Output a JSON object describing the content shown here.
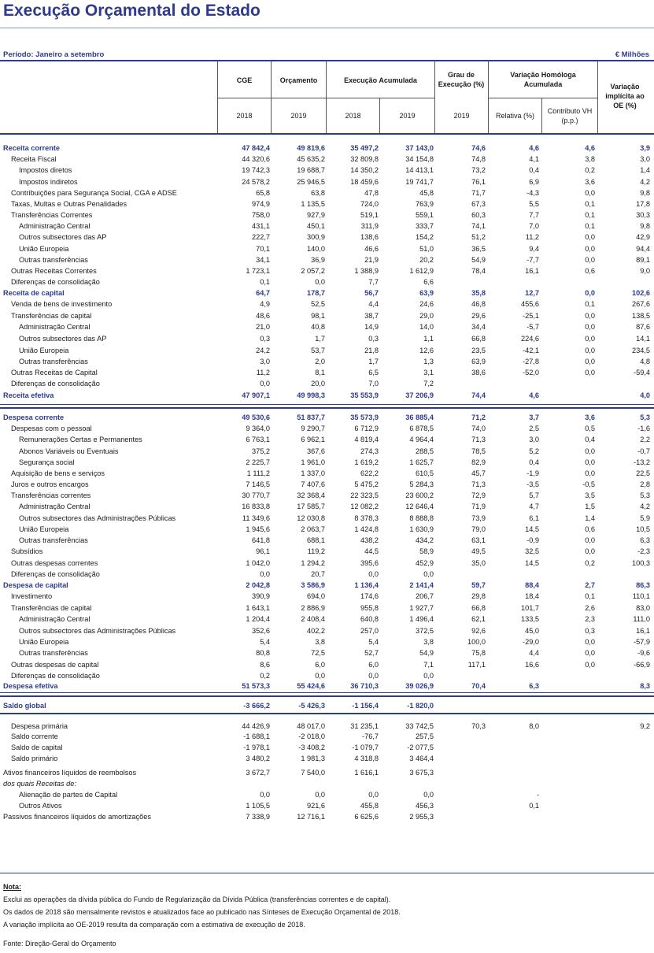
{
  "title": "Execução Orçamental do Estado",
  "period": "Período: Janeiro a setembro",
  "unit": "€ Milhões",
  "headers": {
    "cge": "CGE",
    "orcamento": "Orçamento",
    "execucao": "Execução Acumulada",
    "grau": "Grau de Execução (%)",
    "variacao": "Variação Homóloga Acumulada",
    "implicita": "Variação implícita ao OE (%)",
    "y2018a": "2018",
    "y2019a": "2019",
    "y2018b": "2018",
    "y2019b": "2019",
    "y2019c": "2019",
    "relativa": "Relativa (%)",
    "contributo": "Contributo VH (p.p.)"
  },
  "rows": [
    {
      "label": "Receita corrente",
      "indent": 0,
      "bold": true,
      "v": [
        "47 842,4",
        "49 819,6",
        "35 497,2",
        "37 143,0",
        "74,6",
        "4,6",
        "4,6",
        "3,9"
      ]
    },
    {
      "label": "Receita Fiscal",
      "indent": 1,
      "v": [
        "44 320,6",
        "45 635,2",
        "32 809,8",
        "34 154,8",
        "74,8",
        "4,1",
        "3,8",
        "3,0"
      ]
    },
    {
      "label": "Impostos diretos",
      "indent": 2,
      "v": [
        "19 742,3",
        "19 688,7",
        "14 350,2",
        "14 413,1",
        "73,2",
        "0,4",
        "0,2",
        "1,4"
      ]
    },
    {
      "label": "Impostos indiretos",
      "indent": 2,
      "v": [
        "24 578,2",
        "25 946,5",
        "18 459,6",
        "19 741,7",
        "76,1",
        "6,9",
        "3,6",
        "4,2"
      ]
    },
    {
      "label": "Contribuições para Segurança Social, CGA e ADSE",
      "indent": 1,
      "v": [
        "65,8",
        "63,8",
        "47,8",
        "45,8",
        "71,7",
        "-4,3",
        "0,0",
        "9,8"
      ]
    },
    {
      "label": "Taxas, Multas e Outras Penalidades",
      "indent": 1,
      "v": [
        "974,9",
        "1 135,5",
        "724,0",
        "763,9",
        "67,3",
        "5,5",
        "0,1",
        "17,8"
      ]
    },
    {
      "label": "Transferências Correntes",
      "indent": 1,
      "v": [
        "758,0",
        "927,9",
        "519,1",
        "559,1",
        "60,3",
        "7,7",
        "0,1",
        "30,3"
      ]
    },
    {
      "label": "Administração Central",
      "indent": 2,
      "v": [
        "431,1",
        "450,1",
        "311,9",
        "333,7",
        "74,1",
        "7,0",
        "0,1",
        "9,8"
      ]
    },
    {
      "label": "Outros subsectores das AP",
      "indent": 2,
      "v": [
        "222,7",
        "300,9",
        "138,6",
        "154,2",
        "51,2",
        "11,2",
        "0,0",
        "42,9"
      ]
    },
    {
      "label": "União Europeia",
      "indent": 2,
      "v": [
        "70,1",
        "140,0",
        "46,6",
        "51,0",
        "36,5",
        "9,4",
        "0,0",
        "94,4"
      ]
    },
    {
      "label": "Outras transferências",
      "indent": 2,
      "v": [
        "34,1",
        "36,9",
        "21,9",
        "20,2",
        "54,9",
        "-7,7",
        "0,0",
        "89,1"
      ]
    },
    {
      "label": "Outras Receitas Correntes",
      "indent": 1,
      "v": [
        "1 723,1",
        "2 057,2",
        "1 388,9",
        "1 612,9",
        "78,4",
        "16,1",
        "0,6",
        "9,0"
      ]
    },
    {
      "label": "Diferenças de consolidação",
      "indent": 1,
      "v": [
        "0,1",
        "0,0",
        "7,7",
        "6,6",
        "",
        "",
        "",
        ""
      ]
    },
    {
      "label": "Receita de capital",
      "indent": 0,
      "bold": true,
      "v": [
        "64,7",
        "178,7",
        "56,7",
        "63,9",
        "35,8",
        "12,7",
        "0,0",
        "102,6"
      ]
    },
    {
      "label": "Venda de bens de investimento",
      "indent": 1,
      "v": [
        "4,9",
        "52,5",
        "4,4",
        "24,6",
        "46,8",
        "455,6",
        "0,1",
        "267,6"
      ]
    },
    {
      "label": "Transferências de capital",
      "indent": 1,
      "v": [
        "48,6",
        "98,1",
        "38,7",
        "29,0",
        "29,6",
        "-25,1",
        "0,0",
        "138,5"
      ]
    },
    {
      "label": "Administração Central",
      "indent": 2,
      "v": [
        "21,0",
        "40,8",
        "14,9",
        "14,0",
        "34,4",
        "-5,7",
        "0,0",
        "87,6"
      ]
    },
    {
      "label": "Outros subsectores das AP",
      "indent": 2,
      "v": [
        "0,3",
        "1,7",
        "0,3",
        "1,1",
        "66,8",
        "224,6",
        "0,0",
        "14,1"
      ]
    },
    {
      "label": "União Europeia",
      "indent": 2,
      "v": [
        "24,2",
        "53,7",
        "21,8",
        "12,6",
        "23,5",
        "-42,1",
        "0,0",
        "234,5"
      ]
    },
    {
      "label": "Outras transferências",
      "indent": 2,
      "v": [
        "3,0",
        "2,0",
        "1,7",
        "1,3",
        "63,9",
        "-27,8",
        "0,0",
        "4,8"
      ]
    },
    {
      "label": "Outras Receitas de Capital",
      "indent": 1,
      "v": [
        "11,2",
        "8,1",
        "6,5",
        "3,1",
        "38,6",
        "-52,0",
        "0,0",
        "-59,4"
      ]
    },
    {
      "label": "Diferenças de consolidação",
      "indent": 1,
      "v": [
        "0,0",
        "20,0",
        "7,0",
        "7,2",
        "",
        "",
        "",
        ""
      ]
    },
    {
      "label": "Receita efetiva",
      "indent": 0,
      "bold": true,
      "v": [
        "47 907,1",
        "49 998,3",
        "35 553,9",
        "37 206,9",
        "74,4",
        "4,6",
        "",
        "4,0"
      ]
    },
    {
      "label": "Despesa corrente",
      "indent": 0,
      "bold": true,
      "v": [
        "49 530,6",
        "51 837,7",
        "35 573,9",
        "36 885,4",
        "71,2",
        "3,7",
        "3,6",
        "5,3"
      ]
    },
    {
      "label": "Despesas com o pessoal",
      "indent": 1,
      "v": [
        "9 364,0",
        "9 290,7",
        "6 712,9",
        "6 878,5",
        "74,0",
        "2,5",
        "0,5",
        "-1,6"
      ]
    },
    {
      "label": "Remunerações Certas e Permanentes",
      "indent": 2,
      "v": [
        "6 763,1",
        "6 962,1",
        "4 819,4",
        "4 964,4",
        "71,3",
        "3,0",
        "0,4",
        "2,2"
      ]
    },
    {
      "label": "Abonos Variáveis ou Eventuais",
      "indent": 2,
      "v": [
        "375,2",
        "367,6",
        "274,3",
        "288,5",
        "78,5",
        "5,2",
        "0,0",
        "-0,7"
      ]
    },
    {
      "label": "Segurança social",
      "indent": 2,
      "v": [
        "2 225,7",
        "1 961,0",
        "1 619,2",
        "1 625,7",
        "82,9",
        "0,4",
        "0,0",
        "-13,2"
      ]
    },
    {
      "label": "Aquisição de bens e serviços",
      "indent": 1,
      "v": [
        "1 111,2",
        "1 337,0",
        "622,2",
        "610,5",
        "45,7",
        "-1,9",
        "0,0",
        "22,5"
      ]
    },
    {
      "label": "Juros e outros encargos",
      "indent": 1,
      "v": [
        "7 146,5",
        "7 407,6",
        "5 475,2",
        "5 284,3",
        "71,3",
        "-3,5",
        "-0,5",
        "2,8"
      ]
    },
    {
      "label": "Transferências correntes",
      "indent": 1,
      "v": [
        "30 770,7",
        "32 368,4",
        "22 323,5",
        "23 600,2",
        "72,9",
        "5,7",
        "3,5",
        "5,3"
      ]
    },
    {
      "label": "Administração Central",
      "indent": 2,
      "v": [
        "16 833,8",
        "17 585,7",
        "12 082,2",
        "12 646,4",
        "71,9",
        "4,7",
        "1,5",
        "4,2"
      ]
    },
    {
      "label": "Outros subsectores das Administrações Públicas",
      "indent": 2,
      "v": [
        "11 349,6",
        "12 030,8",
        "8 378,3",
        "8 888,8",
        "73,9",
        "6,1",
        "1,4",
        "5,9"
      ]
    },
    {
      "label": "União Europeia",
      "indent": 2,
      "v": [
        "1 945,6",
        "2 063,7",
        "1 424,8",
        "1 630,9",
        "79,0",
        "14,5",
        "0,6",
        "10,5"
      ]
    },
    {
      "label": "Outras transferências",
      "indent": 2,
      "v": [
        "641,8",
        "688,1",
        "438,2",
        "434,2",
        "63,1",
        "-0,9",
        "0,0",
        "6,3"
      ]
    },
    {
      "label": "Subsídios",
      "indent": 1,
      "v": [
        "96,1",
        "119,2",
        "44,5",
        "58,9",
        "49,5",
        "32,5",
        "0,0",
        "-2,3"
      ]
    },
    {
      "label": "Outras despesas correntes",
      "indent": 1,
      "v": [
        "1 042,0",
        "1 294,2",
        "395,6",
        "452,9",
        "35,0",
        "14,5",
        "0,2",
        "100,3"
      ]
    },
    {
      "label": "Diferenças de consolidação",
      "indent": 1,
      "v": [
        "0,0",
        "20,7",
        "0,0",
        "0,0",
        "",
        "",
        "",
        ""
      ]
    },
    {
      "label": "Despesa de capital",
      "indent": 0,
      "bold": true,
      "v": [
        "2 042,8",
        "3 586,9",
        "1 136,4",
        "2 141,4",
        "59,7",
        "88,4",
        "2,7",
        "86,3"
      ]
    },
    {
      "label": "Investimento",
      "indent": 1,
      "v": [
        "390,9",
        "694,0",
        "174,6",
        "206,7",
        "29,8",
        "18,4",
        "0,1",
        "110,1"
      ]
    },
    {
      "label": "Transferências de capital",
      "indent": 1,
      "v": [
        "1 643,1",
        "2 886,9",
        "955,8",
        "1 927,7",
        "66,8",
        "101,7",
        "2,6",
        "83,0"
      ]
    },
    {
      "label": "Administração Central",
      "indent": 2,
      "v": [
        "1 204,4",
        "2 408,4",
        "640,8",
        "1 496,4",
        "62,1",
        "133,5",
        "2,3",
        "111,0"
      ]
    },
    {
      "label": "Outros subsectores das Administrações Públicas",
      "indent": 2,
      "v": [
        "352,6",
        "402,2",
        "257,0",
        "372,5",
        "92,6",
        "45,0",
        "0,3",
        "16,1"
      ]
    },
    {
      "label": "União Europeia",
      "indent": 2,
      "v": [
        "5,4",
        "3,8",
        "5,4",
        "3,8",
        "100,0",
        "-29,0",
        "0,0",
        "-57,9"
      ]
    },
    {
      "label": "Outras transferências",
      "indent": 2,
      "v": [
        "80,8",
        "72,5",
        "52,7",
        "54,9",
        "75,8",
        "4,4",
        "0,0",
        "-9,6"
      ]
    },
    {
      "label": "Outras despesas de capital",
      "indent": 1,
      "v": [
        "8,6",
        "6,0",
        "6,0",
        "7,1",
        "117,1",
        "16,6",
        "0,0",
        "-66,9"
      ]
    },
    {
      "label": "Diferenças de consolidação",
      "indent": 1,
      "v": [
        "0,2",
        "0,0",
        "0,0",
        "0,0",
        "",
        "",
        "",
        ""
      ]
    },
    {
      "label": "Despesa efetiva",
      "indent": 0,
      "bold": true,
      "v": [
        "51 573,3",
        "55 424,6",
        "36 710,3",
        "39 026,9",
        "70,4",
        "6,3",
        "",
        "8,3"
      ]
    },
    {
      "label": "Saldo global",
      "indent": 0,
      "bold": true,
      "v": [
        "-3 666,2",
        "-5 426,3",
        "-1 156,4",
        "-1 820,0",
        "",
        "",
        "",
        ""
      ]
    },
    {
      "label": "Despesa  primária",
      "indent": 1,
      "v": [
        "44 426,9",
        "48 017,0",
        "31 235,1",
        "33 742,5",
        "70,3",
        "8,0",
        "",
        "9,2"
      ]
    },
    {
      "label": "Saldo corrente",
      "indent": 1,
      "v": [
        "-1 688,1",
        "-2 018,0",
        "-76,7",
        "257,5",
        "",
        "",
        "",
        ""
      ]
    },
    {
      "label": "Saldo de capital",
      "indent": 1,
      "v": [
        "-1 978,1",
        "-3 408,2",
        "-1 079,7",
        "-2 077,5",
        "",
        "",
        "",
        ""
      ]
    },
    {
      "label": "Saldo primário",
      "indent": 1,
      "v": [
        "3 480,2",
        "1 981,3",
        "4 318,8",
        "3 464,4",
        "",
        "",
        "",
        ""
      ]
    },
    {
      "label": "Ativos financeiros líquidos de reembolsos",
      "indent": 0,
      "v": [
        "3 672,7",
        "7 540,0",
        "1 616,1",
        "3 675,3",
        "",
        "",
        "",
        ""
      ]
    },
    {
      "label": "dos quais Receitas de:",
      "indent": 0,
      "italic": true,
      "v": [
        "",
        "",
        "",
        "",
        "",
        "",
        "",
        ""
      ]
    },
    {
      "label": "Alienação de partes de Capital",
      "indent": 2,
      "v": [
        "0,0",
        "0,0",
        "0,0",
        "0,0",
        "",
        "-",
        "",
        ""
      ]
    },
    {
      "label": "Outros Ativos",
      "indent": 2,
      "v": [
        "1 105,5",
        "921,6",
        "455,8",
        "456,3",
        "",
        "0,1",
        "",
        ""
      ]
    },
    {
      "label": "Passivos financeiros líquidos de amortizações",
      "indent": 0,
      "v": [
        "7 338,9",
        "12 716,1",
        "6 625,6",
        "2 955,3",
        "",
        "",
        "",
        ""
      ]
    }
  ],
  "notes": {
    "title": "Nota:",
    "lines": [
      "Exclui as operações da dívida pública do Fundo de Regularização da Dívida Pública (transferências correntes e de capital).",
      "Os dados de 2018 são mensalmente revistos e atualizados face ao publicado nas Sínteses de Execução Orçamental de 2018.",
      "A variação implícita ao OE-2019 resulta da comparação com a estimativa de execução de 2018."
    ],
    "source": "Fonte: Direção-Geral do Orçamento"
  }
}
